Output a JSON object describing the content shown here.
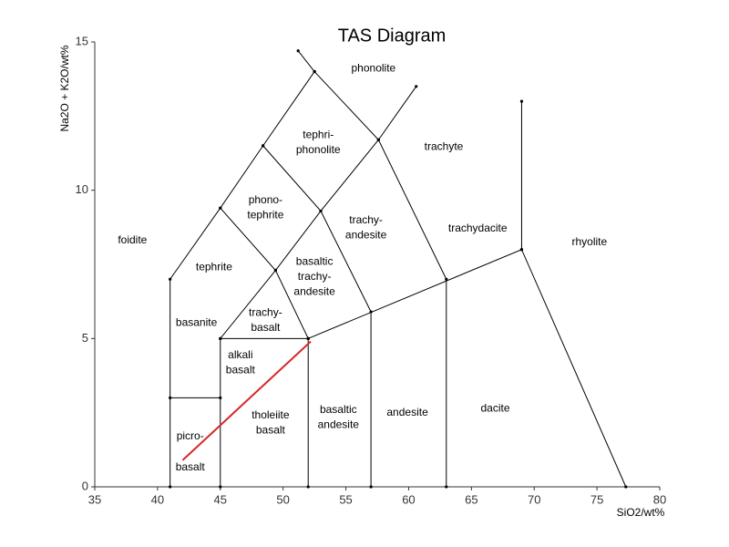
{
  "chart_data": {
    "type": "tas",
    "title": "TAS Diagram",
    "x_label": "SiO2/wt%",
    "y_label": "Na2O + K2O/wt%",
    "xlim": [
      35,
      80
    ],
    "ylim": [
      0,
      15
    ],
    "xticks": [
      35,
      40,
      45,
      50,
      55,
      60,
      65,
      70,
      75,
      80
    ],
    "yticks": [
      0,
      5,
      10,
      15
    ],
    "color": "#000000",
    "boundaries": [
      {
        "x": [
          41,
          41,
          45,
          48.4,
          52.5,
          52.5
        ],
        "y": [
          0,
          7,
          9.4,
          11.5,
          14,
          14
        ]
      },
      {
        "x": [
          45,
          45,
          49.4,
          53,
          57.6,
          60.6
        ],
        "y": [
          0,
          5,
          7.3,
          9.3,
          11.7,
          13.5
        ]
      },
      {
        "x": [
          52,
          52,
          69,
          77.3
        ],
        "y": [
          0,
          5,
          8,
          0
        ]
      },
      {
        "x": [
          69,
          69
        ],
        "y": [
          8,
          13
        ]
      },
      {
        "x": [
          57,
          57,
          53,
          48.4
        ],
        "y": [
          0,
          5.9,
          9.3,
          11.5
        ]
      },
      {
        "x": [
          63,
          63,
          57.6,
          52.5,
          51.2
        ],
        "y": [
          0,
          7,
          11.7,
          14,
          14.7
        ]
      },
      {
        "x": [
          41,
          45
        ],
        "y": [
          3,
          3
        ]
      },
      {
        "x": [
          45,
          52
        ],
        "y": [
          5,
          5
        ]
      },
      {
        "x": [
          45,
          49.4,
          52
        ],
        "y": [
          9.4,
          7.3,
          5
        ]
      }
    ],
    "highlight": {
      "x": [
        42,
        52.2
      ],
      "y": [
        0.9,
        4.9
      ],
      "color": "#d62728"
    },
    "annotations": [
      {
        "lines": [
          "phonolite"
        ],
        "x": 57.2,
        "y": 14.1
      },
      {
        "lines": [
          "tephri-",
          "phonolite"
        ],
        "x": 52.8,
        "y": 11.6
      },
      {
        "lines": [
          "trachyte"
        ],
        "x": 62.8,
        "y": 11.45
      },
      {
        "lines": [
          "foidite"
        ],
        "x": 38.0,
        "y": 8.3
      },
      {
        "lines": [
          "phono-",
          "tephrite"
        ],
        "x": 48.6,
        "y": 9.4
      },
      {
        "lines": [
          "trachy-",
          "andesite"
        ],
        "x": 56.6,
        "y": 8.73
      },
      {
        "lines": [
          "trachydacite"
        ],
        "x": 65.5,
        "y": 8.7
      },
      {
        "lines": [
          "rhyolite"
        ],
        "x": 74.4,
        "y": 8.24
      },
      {
        "lines": [
          "tephrite"
        ],
        "x": 44.5,
        "y": 7.4
      },
      {
        "lines": [
          "basaltic",
          "trachy-",
          "andesite"
        ],
        "x": 52.5,
        "y": 7.07
      },
      {
        "lines": [
          "basanite"
        ],
        "x": 43.1,
        "y": 5.53
      },
      {
        "lines": [
          "trachy-",
          "basalt"
        ],
        "x": 48.6,
        "y": 5.6
      },
      {
        "lines": [
          "alkali",
          "basalt"
        ],
        "x": 46.6,
        "y": 4.18
      },
      {
        "lines": [
          "tholeiite",
          "basalt"
        ],
        "x": 49.0,
        "y": 2.15
      },
      {
        "lines": [
          "basaltic",
          "andesite"
        ],
        "x": 54.4,
        "y": 2.34
      },
      {
        "lines": [
          "andesite"
        ],
        "x": 59.9,
        "y": 2.49
      },
      {
        "lines": [
          "dacite"
        ],
        "x": 66.9,
        "y": 2.64
      },
      {
        "lines": [
          "picro-"
        ],
        "x": 42.6,
        "y": 1.69
      },
      {
        "lines": [
          "basalt"
        ],
        "x": 42.6,
        "y": 0.65
      }
    ]
  }
}
